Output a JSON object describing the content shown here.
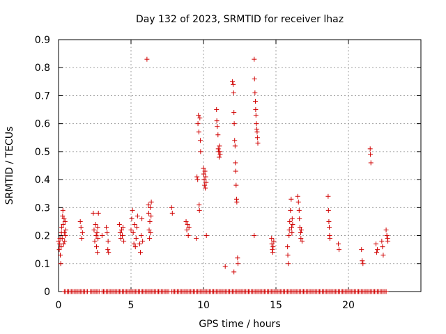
{
  "chart_data": {
    "type": "scatter",
    "title": "Day 132 of 2023, SRMTID for receiver lhaz",
    "xlabel": "GPS time / hours",
    "ylabel": "SRMTID / TECUs",
    "xlim": [
      0,
      25
    ],
    "ylim": [
      0,
      0.9
    ],
    "xticks": [
      "0",
      "5",
      "10",
      "15",
      "20"
    ],
    "yticks": [
      "0",
      "0.1",
      "0.2",
      "0.3",
      "0.4",
      "0.5",
      "0.6",
      "0.7",
      "0.8",
      "0.9"
    ],
    "grid": true,
    "marker": "+",
    "color": "#d00000",
    "series": [
      {
        "name": "SRMTID",
        "points": [
          [
            0.0,
            0.18
          ],
          [
            0.05,
            0.15
          ],
          [
            0.08,
            0.17
          ],
          [
            0.1,
            0.19
          ],
          [
            0.12,
            0.13
          ],
          [
            0.15,
            0.1
          ],
          [
            0.18,
            0.16
          ],
          [
            0.2,
            0.21
          ],
          [
            0.22,
            0.23
          ],
          [
            0.25,
            0.19
          ],
          [
            0.28,
            0.27
          ],
          [
            0.3,
            0.29
          ],
          [
            0.32,
            0.24
          ],
          [
            0.35,
            0.17
          ],
          [
            0.38,
            0.26
          ],
          [
            0.4,
            0.21
          ],
          [
            0.42,
            0.18
          ],
          [
            0.45,
            0.25
          ],
          [
            0.48,
            0.2
          ],
          [
            0.5,
            0.22
          ],
          [
            1.5,
            0.25
          ],
          [
            1.55,
            0.23
          ],
          [
            1.6,
            0.19
          ],
          [
            1.65,
            0.21
          ],
          [
            2.4,
            0.28
          ],
          [
            2.45,
            0.22
          ],
          [
            2.5,
            0.18
          ],
          [
            2.55,
            0.24
          ],
          [
            2.6,
            0.2
          ],
          [
            2.62,
            0.16
          ],
          [
            2.65,
            0.21
          ],
          [
            2.68,
            0.14
          ],
          [
            2.7,
            0.23
          ],
          [
            2.72,
            0.19
          ],
          [
            2.75,
            0.28
          ],
          [
            3.0,
            0.2
          ],
          [
            3.3,
            0.23
          ],
          [
            3.35,
            0.21
          ],
          [
            3.4,
            0.15
          ],
          [
            3.42,
            0.18
          ],
          [
            3.45,
            0.14
          ],
          [
            4.2,
            0.24
          ],
          [
            4.25,
            0.21
          ],
          [
            4.3,
            0.19
          ],
          [
            4.35,
            0.22
          ],
          [
            4.4,
            0.2
          ],
          [
            4.45,
            0.23
          ],
          [
            4.5,
            0.18
          ],
          [
            5.0,
            0.22
          ],
          [
            5.05,
            0.26
          ],
          [
            5.1,
            0.29
          ],
          [
            5.15,
            0.21
          ],
          [
            5.2,
            0.17
          ],
          [
            5.25,
            0.24
          ],
          [
            5.3,
            0.16
          ],
          [
            5.35,
            0.19
          ],
          [
            5.4,
            0.23
          ],
          [
            5.45,
            0.27
          ],
          [
            5.6,
            0.17
          ],
          [
            5.65,
            0.14
          ],
          [
            5.7,
            0.2
          ],
          [
            5.75,
            0.26
          ],
          [
            5.8,
            0.18
          ],
          [
            6.1,
            0.83
          ],
          [
            6.2,
            0.31
          ],
          [
            6.22,
            0.28
          ],
          [
            6.25,
            0.22
          ],
          [
            6.28,
            0.19
          ],
          [
            6.3,
            0.25
          ],
          [
            6.32,
            0.3
          ],
          [
            6.35,
            0.21
          ],
          [
            6.38,
            0.27
          ],
          [
            6.4,
            0.32
          ],
          [
            7.8,
            0.3
          ],
          [
            7.85,
            0.28
          ],
          [
            8.8,
            0.25
          ],
          [
            8.85,
            0.22
          ],
          [
            8.9,
            0.24
          ],
          [
            8.95,
            0.2
          ],
          [
            9.0,
            0.23
          ],
          [
            9.5,
            0.19
          ],
          [
            9.55,
            0.41
          ],
          [
            9.6,
            0.4
          ],
          [
            9.62,
            0.6
          ],
          [
            9.65,
            0.63
          ],
          [
            9.68,
            0.57
          ],
          [
            9.7,
            0.31
          ],
          [
            9.72,
            0.29
          ],
          [
            9.75,
            0.62
          ],
          [
            9.78,
            0.54
          ],
          [
            9.8,
            0.5
          ],
          [
            10.0,
            0.44
          ],
          [
            10.02,
            0.42
          ],
          [
            10.05,
            0.4
          ],
          [
            10.08,
            0.38
          ],
          [
            10.1,
            0.43
          ],
          [
            10.12,
            0.37
          ],
          [
            10.15,
            0.41
          ],
          [
            10.18,
            0.39
          ],
          [
            10.2,
            0.2
          ],
          [
            10.9,
            0.65
          ],
          [
            10.92,
            0.61
          ],
          [
            10.95,
            0.59
          ],
          [
            11.0,
            0.56
          ],
          [
            11.02,
            0.51
          ],
          [
            11.05,
            0.5
          ],
          [
            11.08,
            0.48
          ],
          [
            11.1,
            0.52
          ],
          [
            11.12,
            0.5
          ],
          [
            11.15,
            0.49
          ],
          [
            11.5,
            0.09
          ],
          [
            12.0,
            0.75
          ],
          [
            12.05,
            0.74
          ],
          [
            12.08,
            0.71
          ],
          [
            12.1,
            0.64
          ],
          [
            12.12,
            0.6
          ],
          [
            12.15,
            0.54
          ],
          [
            12.18,
            0.52
          ],
          [
            12.2,
            0.46
          ],
          [
            12.22,
            0.43
          ],
          [
            12.25,
            0.38
          ],
          [
            12.28,
            0.33
          ],
          [
            12.3,
            0.32
          ],
          [
            12.35,
            0.12
          ],
          [
            12.38,
            0.1
          ],
          [
            12.1,
            0.07
          ],
          [
            13.5,
            0.83
          ],
          [
            13.52,
            0.76
          ],
          [
            13.55,
            0.71
          ],
          [
            13.58,
            0.68
          ],
          [
            13.6,
            0.65
          ],
          [
            13.62,
            0.63
          ],
          [
            13.65,
            0.6
          ],
          [
            13.68,
            0.58
          ],
          [
            13.7,
            0.57
          ],
          [
            13.72,
            0.55
          ],
          [
            13.75,
            0.53
          ],
          [
            13.5,
            0.2
          ],
          [
            14.7,
            0.19
          ],
          [
            14.72,
            0.17
          ],
          [
            14.75,
            0.15
          ],
          [
            14.78,
            0.14
          ],
          [
            14.8,
            0.16
          ],
          [
            14.85,
            0.18
          ],
          [
            15.8,
            0.16
          ],
          [
            15.82,
            0.13
          ],
          [
            15.85,
            0.1
          ],
          [
            15.9,
            0.2
          ],
          [
            15.92,
            0.22
          ],
          [
            15.95,
            0.25
          ],
          [
            16.0,
            0.29
          ],
          [
            16.05,
            0.33
          ],
          [
            16.08,
            0.23
          ],
          [
            16.1,
            0.21
          ],
          [
            16.12,
            0.26
          ],
          [
            16.15,
            0.24
          ],
          [
            16.5,
            0.34
          ],
          [
            16.55,
            0.32
          ],
          [
            16.6,
            0.29
          ],
          [
            16.62,
            0.26
          ],
          [
            16.65,
            0.23
          ],
          [
            16.7,
            0.21
          ],
          [
            16.72,
            0.19
          ],
          [
            16.75,
            0.22
          ],
          [
            16.8,
            0.18
          ],
          [
            18.6,
            0.34
          ],
          [
            18.62,
            0.29
          ],
          [
            18.65,
            0.25
          ],
          [
            18.68,
            0.23
          ],
          [
            18.7,
            0.2
          ],
          [
            18.72,
            0.19
          ],
          [
            19.3,
            0.17
          ],
          [
            19.35,
            0.15
          ],
          [
            20.9,
            0.15
          ],
          [
            20.95,
            0.11
          ],
          [
            21.0,
            0.1
          ],
          [
            21.5,
            0.51
          ],
          [
            21.52,
            0.49
          ],
          [
            21.55,
            0.46
          ],
          [
            21.9,
            0.17
          ],
          [
            21.95,
            0.14
          ],
          [
            22.0,
            0.15
          ],
          [
            22.3,
            0.18
          ],
          [
            22.35,
            0.16
          ],
          [
            22.4,
            0.13
          ],
          [
            22.6,
            0.22
          ],
          [
            22.65,
            0.2
          ],
          [
            22.7,
            0.19
          ],
          [
            22.72,
            0.18
          ]
        ]
      }
    ],
    "baseline_zeros": {
      "value": 0,
      "x_values": [
        0.4,
        0.5,
        0.6,
        0.7,
        0.8,
        0.9,
        1.0,
        1.1,
        1.2,
        1.3,
        1.4,
        1.5,
        1.6,
        1.7,
        1.8,
        1.9,
        2.0,
        2.2,
        2.3,
        2.4,
        2.5,
        2.6,
        2.7,
        2.8,
        3.0,
        3.1,
        3.2,
        3.3,
        3.4,
        3.5,
        3.6,
        3.7,
        3.8,
        3.9,
        4.0,
        4.1,
        4.2,
        4.3,
        4.4,
        4.5,
        4.6,
        4.7,
        4.8,
        4.9,
        5.0,
        5.1,
        5.2,
        5.3,
        5.4,
        5.5,
        5.6,
        5.7,
        5.8,
        5.9,
        6.0,
        6.1,
        6.2,
        6.3,
        6.4,
        6.5,
        6.6,
        6.7,
        6.8,
        6.9,
        7.0,
        7.1,
        7.2,
        7.3,
        7.4,
        7.5,
        7.6,
        7.8,
        7.9,
        8.0,
        8.1,
        8.2,
        8.3,
        8.4,
        8.5,
        8.6,
        8.7,
        8.8,
        8.9,
        9.0,
        9.1,
        9.2,
        9.3,
        9.4,
        9.5,
        9.6,
        9.7,
        9.8,
        9.9,
        10.0,
        10.1,
        10.2,
        10.3,
        10.4,
        10.5,
        10.6,
        10.7,
        10.8,
        10.9,
        11.0,
        11.1,
        11.2,
        11.3,
        11.4,
        11.5,
        11.6,
        11.7,
        11.8,
        11.9,
        12.0,
        12.1,
        12.2,
        12.3,
        12.4,
        12.5,
        12.6,
        12.7,
        12.8,
        12.9,
        13.0,
        13.1,
        13.2,
        13.3,
        13.4,
        13.5,
        13.6,
        13.7,
        13.8,
        13.9,
        14.0,
        14.1,
        14.2,
        14.3,
        14.4,
        14.5,
        14.6,
        14.7,
        14.8,
        14.9,
        15.0,
        15.1,
        15.2,
        15.3,
        15.4,
        15.5,
        15.6,
        15.7,
        15.8,
        15.9,
        16.0,
        16.1,
        16.2,
        16.3,
        16.4,
        16.5,
        16.6,
        16.7,
        16.8,
        16.9,
        17.0,
        17.1,
        17.2,
        17.3,
        17.4,
        17.5,
        17.6,
        17.7,
        17.8,
        17.9,
        18.0,
        18.1,
        18.2,
        18.3,
        18.4,
        18.5,
        18.6,
        18.7,
        18.8,
        18.9,
        19.0,
        19.1,
        19.2,
        19.3,
        19.4,
        19.5,
        19.6,
        19.7,
        19.8,
        19.9,
        20.0,
        20.1,
        20.2,
        20.3,
        20.4,
        20.5,
        20.6,
        20.7,
        20.8,
        20.9,
        21.0,
        21.1,
        21.2,
        21.3,
        21.4,
        21.5,
        21.6,
        21.7,
        21.8,
        21.9,
        22.0,
        22.1,
        22.2,
        22.3,
        22.4,
        22.5,
        22.6
      ]
    }
  }
}
